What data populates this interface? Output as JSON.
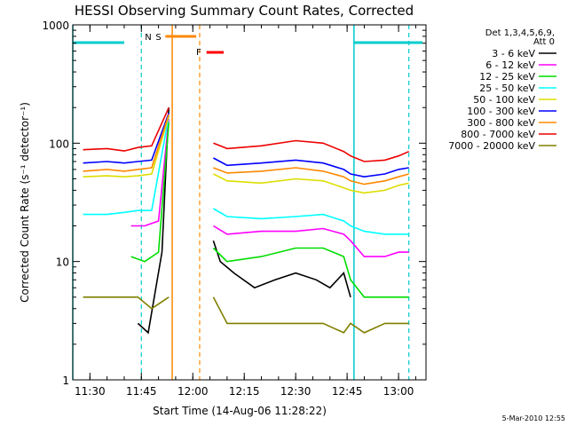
{
  "chart_data": {
    "type": "line",
    "title": "HESSI Observing Summary Count Rates, Corrected",
    "xlabel": "Start Time (14-Aug-06 11:28:22)",
    "ylabel": "Corrected Count Rate (s⁻¹ detector⁻¹)",
    "y_scale": "log",
    "ylim": [
      1,
      1000
    ],
    "xlim": [
      "11:25",
      "13:08"
    ],
    "y_ticks": [
      "1",
      "10",
      "100",
      "1000"
    ],
    "x_ticks": [
      "11:30",
      "11:45",
      "12:00",
      "12:15",
      "12:30",
      "12:45",
      "13:00"
    ],
    "footer": "5-Mar-2010 12:55",
    "legend": {
      "position": "right",
      "header1": "Det 1,3,4,5,6,9,",
      "header2": "Att 0"
    },
    "series": [
      {
        "name": "3 - 6 keV",
        "color": "#000000",
        "x": [
          "11:25",
          "11:40",
          "11:44",
          "11:47",
          "11:51",
          "11:53",
          "12:04",
          "12:06",
          "12:08",
          "12:12",
          "12:18",
          "12:24",
          "12:30",
          "12:36",
          "12:40",
          "12:44",
          "12:46",
          "12:52",
          "12:58",
          "13:02",
          "13:03"
        ],
        "y": [
          null,
          null,
          3,
          2.5,
          12,
          200,
          null,
          15,
          10,
          8,
          6,
          7,
          8,
          7,
          6,
          8,
          5,
          null,
          null,
          null,
          null
        ]
      },
      {
        "name": "6 - 12 keV",
        "color": "#ff00ff",
        "x": [
          "11:25",
          "11:40",
          "11:42",
          "11:46",
          "11:50",
          "11:53",
          "12:04",
          "12:06",
          "12:10",
          "12:20",
          "12:30",
          "12:38",
          "12:44",
          "12:46",
          "12:50",
          "12:56",
          "13:00",
          "13:03"
        ],
        "y": [
          null,
          null,
          20,
          20,
          22,
          160,
          null,
          20,
          17,
          18,
          18,
          19,
          17,
          15,
          11,
          11,
          12,
          12
        ]
      },
      {
        "name": "12 - 25 keV",
        "color": "#00dd00",
        "x": [
          "11:25",
          "11:40",
          "11:42",
          "11:46",
          "11:50",
          "11:53",
          "12:04",
          "12:06",
          "12:10",
          "12:20",
          "12:30",
          "12:38",
          "12:44",
          "12:46",
          "12:50",
          "12:56",
          "13:00",
          "13:03"
        ],
        "y": [
          null,
          null,
          11,
          10,
          12,
          150,
          null,
          13,
          10,
          11,
          13,
          13,
          11,
          7,
          5,
          5,
          5,
          5
        ]
      },
      {
        "name": "25 - 50 keV",
        "color": "#00ffff",
        "x": [
          "11:25",
          "11:28",
          "11:35",
          "11:40",
          "11:44",
          "11:48",
          "11:53",
          "12:04",
          "12:06",
          "12:10",
          "12:20",
          "12:30",
          "12:38",
          "12:44",
          "12:46",
          "12:50",
          "12:56",
          "13:00",
          "13:03"
        ],
        "y": [
          null,
          25,
          25,
          26,
          27,
          27,
          170,
          null,
          28,
          24,
          23,
          24,
          25,
          22,
          20,
          18,
          17,
          17,
          17
        ]
      },
      {
        "name": "50 - 100 keV",
        "color": "#dddd00",
        "x": [
          "11:25",
          "11:28",
          "11:35",
          "11:40",
          "11:44",
          "11:48",
          "11:53",
          "12:04",
          "12:06",
          "12:10",
          "12:20",
          "12:30",
          "12:38",
          "12:44",
          "12:46",
          "12:50",
          "12:56",
          "13:00",
          "13:03"
        ],
        "y": [
          null,
          52,
          53,
          52,
          53,
          55,
          170,
          null,
          55,
          48,
          46,
          50,
          48,
          42,
          40,
          38,
          40,
          44,
          46
        ]
      },
      {
        "name": "100 - 300 keV",
        "color": "#0000ff",
        "x": [
          "11:25",
          "11:28",
          "11:35",
          "11:40",
          "11:44",
          "11:48",
          "11:53",
          "12:04",
          "12:06",
          "12:10",
          "12:20",
          "12:30",
          "12:38",
          "12:44",
          "12:46",
          "12:50",
          "12:56",
          "13:00",
          "13:03"
        ],
        "y": [
          null,
          68,
          70,
          68,
          70,
          72,
          180,
          null,
          75,
          65,
          68,
          72,
          68,
          60,
          55,
          52,
          55,
          60,
          62
        ]
      },
      {
        "name": "300 - 800 keV",
        "color": "#ff8800",
        "x": [
          "11:25",
          "11:28",
          "11:35",
          "11:40",
          "11:44",
          "11:48",
          "11:53",
          "12:04",
          "12:06",
          "12:10",
          "12:20",
          "12:30",
          "12:38",
          "12:44",
          "12:46",
          "12:50",
          "12:56",
          "13:00",
          "13:03"
        ],
        "y": [
          null,
          58,
          60,
          58,
          60,
          62,
          175,
          null,
          62,
          56,
          58,
          62,
          58,
          52,
          48,
          45,
          48,
          52,
          55
        ]
      },
      {
        "name": "800 - 7000 keV",
        "color": "#ee0000",
        "x": [
          "11:25",
          "11:28",
          "11:35",
          "11:40",
          "11:44",
          "11:48",
          "11:53",
          "12:04",
          "12:06",
          "12:10",
          "12:20",
          "12:30",
          "12:38",
          "12:44",
          "12:46",
          "12:50",
          "12:56",
          "13:00",
          "13:03"
        ],
        "y": [
          null,
          88,
          90,
          86,
          92,
          95,
          200,
          null,
          100,
          90,
          95,
          105,
          100,
          85,
          78,
          70,
          72,
          78,
          85
        ]
      },
      {
        "name": "7000 - 20000 keV",
        "color": "#808000",
        "x": [
          "11:25",
          "11:28",
          "11:35",
          "11:40",
          "11:44",
          "11:48",
          "11:53",
          "12:04",
          "12:06",
          "12:10",
          "12:20",
          "12:30",
          "12:38",
          "12:44",
          "12:46",
          "12:50",
          "12:56",
          "13:00",
          "13:03"
        ],
        "y": [
          null,
          5,
          5,
          5,
          5,
          4,
          5,
          null,
          5,
          3,
          3,
          3,
          3,
          2.5,
          3,
          2.5,
          3,
          3,
          3
        ]
      }
    ],
    "annotations": [
      {
        "label": "N",
        "color": "#00cccc"
      },
      {
        "label": "S",
        "color": "#ff8800"
      },
      {
        "label": "F",
        "color": "#ff0000"
      }
    ]
  }
}
